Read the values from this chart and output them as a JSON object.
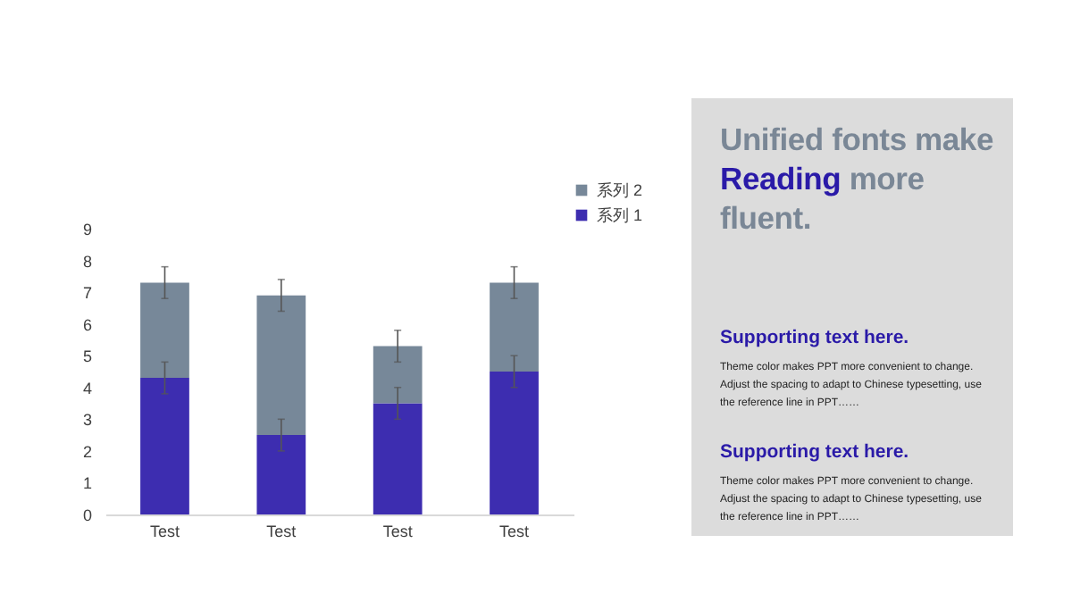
{
  "chart_data": [
    {
      "type": "bar",
      "stacked": true,
      "categories": [
        "Test",
        "Test",
        "Test",
        "Test"
      ],
      "series": [
        {
          "name": "系列 1",
          "color": "#3d2db0",
          "values": [
            4.3,
            2.5,
            3.5,
            4.5
          ],
          "errors": [
            0.5,
            0.5,
            0.5,
            0.5
          ]
        },
        {
          "name": "系列 2",
          "color": "#778899",
          "values": [
            3.0,
            4.4,
            1.8,
            2.8
          ],
          "errors": [
            0.5,
            0.5,
            0.5,
            0.5
          ]
        }
      ],
      "ylim": [
        0,
        9
      ],
      "yticks": [
        0,
        1,
        2,
        3,
        4,
        5,
        6,
        7,
        8,
        9
      ],
      "grid": false,
      "legend": "top right"
    },
    {
      "type": "other",
      "title": "Unified fonts make Reading more fluent.",
      "annotations": [
        "Supporting text here.",
        "Theme color makes PPT more convenient to change. Adjust the spacing to adapt to Chinese typesetting, use the reference line in PPT……",
        "Supporting text here.",
        "Theme color makes PPT more convenient to change. Adjust the spacing to adapt to Chinese typesetting, use the reference line in PPT……"
      ]
    }
  ]
}
